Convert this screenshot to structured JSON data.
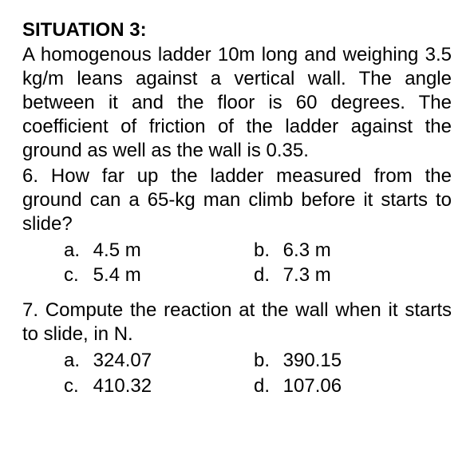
{
  "title": "SITUATION 3:",
  "paragraph": "A homogenous ladder 10m long and weighing 3.5 kg/m leans against a vertical wall. The angle between it and the floor is 60 degrees. The coefficient of friction of the ladder against the ground as well as the wall is 0.35.",
  "q6": {
    "text": "6. How far up the ladder measured from the ground can a 65-kg man climb before it starts to slide?",
    "options": {
      "a_label": "a.",
      "a_value": "4.5 m",
      "b_label": "b.",
      "b_value": "6.3 m",
      "c_label": "c.",
      "c_value": "5.4 m",
      "d_label": "d.",
      "d_value": "7.3 m"
    }
  },
  "q7": {
    "text": "7. Compute the reaction at the wall when it starts to slide, in N.",
    "options": {
      "a_label": "a.",
      "a_value": "324.07",
      "b_label": "b.",
      "b_value": "390.15",
      "c_label": "c.",
      "c_value": "410.32",
      "d_label": "d.",
      "d_value": "107.06"
    }
  },
  "colors": {
    "background": "#ffffff",
    "text": "#000000"
  },
  "typography": {
    "font_family": "Arial, Helvetica, sans-serif",
    "title_fontsize": 24,
    "body_fontsize": 24,
    "title_fontweight": "bold"
  }
}
